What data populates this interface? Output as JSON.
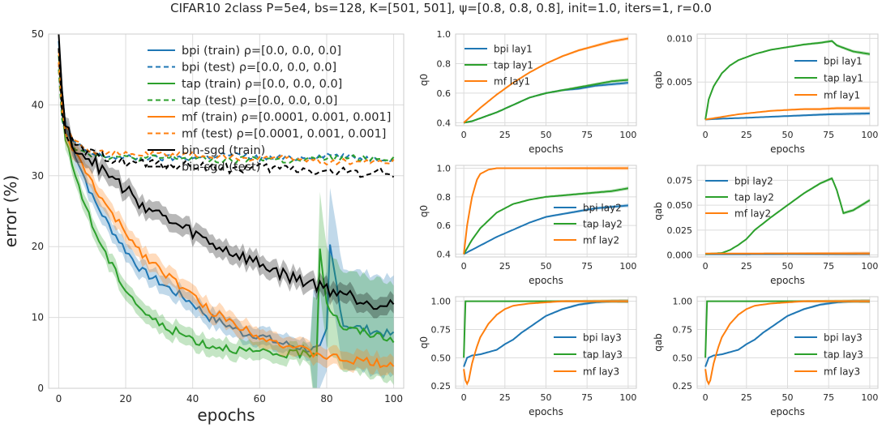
{
  "suptitle": "CIFAR10 2class P=5e4, bs=128, K=[501, 501], ψ=[0.8, 0.8, 0.8], init=1.0, iters=1, r=0.0",
  "colors": {
    "bpi": "#1f77b4",
    "tap": "#2ca02c",
    "mf": "#ff7f0e",
    "sgd": "#000000",
    "grid": "#dcdcdc",
    "frame": "#cccccc"
  },
  "chart_data": [
    {
      "id": "main",
      "type": "line",
      "xlabel": "epochs",
      "ylabel": "error (%)",
      "xlim": [
        -3,
        103
      ],
      "ylim": [
        0,
        50
      ],
      "xticks": [
        0,
        20,
        40,
        60,
        80,
        100
      ],
      "yticks": [
        0,
        10,
        20,
        30,
        40,
        50
      ],
      "legend_position": "upper center",
      "series": [
        {
          "name": "bpi (train) ρ=[0.0, 0.0, 0.0]",
          "color": "bpi",
          "dash": false,
          "band": true,
          "x": [
            0,
            1,
            2,
            5,
            10,
            15,
            20,
            25,
            30,
            35,
            40,
            45,
            50,
            55,
            60,
            65,
            70,
            75,
            78,
            80,
            81,
            85,
            90,
            95,
            100
          ],
          "y": [
            49,
            42,
            37,
            33,
            27,
            23,
            19.5,
            16.5,
            15,
            13.5,
            12,
            10,
            9,
            7.8,
            7.5,
            6.5,
            6,
            5.5,
            5.5,
            8,
            20,
            9,
            8.5,
            8,
            7.5
          ]
        },
        {
          "name": "bpi (test) ρ=[0.0, 0.0, 0.0]",
          "color": "bpi",
          "dash": true,
          "band": false,
          "x": [
            0,
            1,
            2,
            5,
            10,
            20,
            30,
            40,
            50,
            60,
            70,
            80,
            90,
            100
          ],
          "y": [
            46,
            38,
            36,
            34.5,
            33,
            32.5,
            32.5,
            32.5,
            33,
            32.5,
            32.5,
            33,
            32.5,
            32.5
          ]
        },
        {
          "name": "tap (train) ρ=[0.0, 0.0, 0.0]",
          "color": "tap",
          "dash": false,
          "band": true,
          "x": [
            0,
            1,
            2,
            5,
            10,
            15,
            20,
            25,
            30,
            35,
            40,
            45,
            50,
            55,
            60,
            65,
            70,
            75,
            77,
            78,
            80,
            85,
            90,
            95,
            100
          ],
          "y": [
            47,
            40,
            35,
            30,
            23,
            18,
            14,
            11,
            9,
            8,
            7,
            6,
            5.8,
            5.3,
            5,
            4.8,
            4.8,
            5,
            5,
            20,
            12,
            8.5,
            8,
            7.5,
            7
          ]
        },
        {
          "name": "tap (test) ρ=[0.0, 0.0, 0.0]",
          "color": "tap",
          "dash": true,
          "band": false,
          "x": [
            0,
            1,
            2,
            5,
            10,
            20,
            30,
            40,
            50,
            60,
            70,
            80,
            90,
            100
          ],
          "y": [
            45,
            38,
            36,
            34,
            33,
            32.5,
            32.5,
            32.5,
            32,
            32.5,
            32,
            32.5,
            32.5,
            32.5
          ]
        },
        {
          "name": "mf (train) ρ=[0.0001, 0.001, 0.001]",
          "color": "mf",
          "dash": false,
          "band": true,
          "x": [
            0,
            1,
            2,
            5,
            10,
            15,
            20,
            25,
            30,
            35,
            40,
            45,
            50,
            55,
            60,
            65,
            70,
            75,
            80,
            85,
            90,
            95,
            100
          ],
          "y": [
            48,
            40,
            36,
            33,
            29,
            25,
            22,
            19,
            17,
            15,
            13,
            11,
            9.8,
            8.5,
            7.5,
            6.5,
            5.8,
            5,
            4.5,
            4,
            3.8,
            3.6,
            3.4
          ]
        },
        {
          "name": "mf (test) ρ=[0.0001, 0.001, 0.001]",
          "color": "mf",
          "dash": true,
          "band": false,
          "x": [
            0,
            1,
            2,
            5,
            10,
            20,
            30,
            40,
            50,
            60,
            70,
            80,
            90,
            100
          ],
          "y": [
            46,
            39,
            37,
            35,
            33.5,
            33,
            33,
            33,
            32.5,
            32.5,
            32.5,
            32,
            32,
            32
          ]
        },
        {
          "name": "bin-sgd (train)",
          "color": "sgd",
          "dash": false,
          "band": true,
          "x": [
            0,
            1,
            2,
            5,
            10,
            15,
            20,
            25,
            30,
            35,
            40,
            45,
            50,
            55,
            60,
            65,
            70,
            75,
            80,
            85,
            90,
            95,
            100
          ],
          "y": [
            50,
            42,
            37,
            34,
            32,
            30,
            28,
            26,
            24.5,
            23,
            22,
            20.5,
            19.5,
            18.5,
            17.5,
            16.5,
            15.5,
            15,
            14,
            13.5,
            12.5,
            12,
            12
          ]
        },
        {
          "name": "bin-sgd (test)",
          "color": "sgd",
          "dash": true,
          "band": false,
          "x": [
            0,
            1,
            2,
            5,
            10,
            20,
            30,
            40,
            50,
            60,
            70,
            80,
            90,
            100
          ],
          "y": [
            48,
            39,
            36,
            34,
            33,
            32,
            31.5,
            31.5,
            31,
            31,
            31,
            30.5,
            30.5,
            30.5
          ]
        }
      ]
    },
    {
      "id": "r1c1",
      "type": "line",
      "xlabel": "epochs",
      "ylabel": "q0",
      "xlim": [
        -5,
        105
      ],
      "ylim": [
        0.38,
        1.0
      ],
      "xticks": [
        0,
        25,
        50,
        75,
        100
      ],
      "yticks": [
        0.4,
        0.6,
        0.8,
        1.0
      ],
      "yticklabels": [
        "0.4",
        "0.6",
        "0.8",
        "1.0"
      ],
      "legend_position": "upper left",
      "series": [
        {
          "name": "bpi lay1",
          "color": "bpi",
          "x": [
            0,
            5,
            10,
            20,
            30,
            40,
            50,
            60,
            70,
            80,
            90,
            100
          ],
          "y": [
            0.4,
            0.41,
            0.43,
            0.47,
            0.52,
            0.57,
            0.6,
            0.62,
            0.63,
            0.65,
            0.66,
            0.67
          ]
        },
        {
          "name": "tap lay1",
          "color": "tap",
          "x": [
            0,
            5,
            10,
            20,
            30,
            40,
            50,
            60,
            70,
            80,
            90,
            100
          ],
          "y": [
            0.4,
            0.41,
            0.43,
            0.47,
            0.52,
            0.57,
            0.6,
            0.62,
            0.64,
            0.66,
            0.68,
            0.69
          ]
        },
        {
          "name": "mf lay1",
          "color": "mf",
          "x": [
            0,
            5,
            10,
            20,
            30,
            40,
            50,
            60,
            70,
            80,
            90,
            100
          ],
          "y": [
            0.4,
            0.45,
            0.5,
            0.59,
            0.67,
            0.74,
            0.8,
            0.85,
            0.89,
            0.92,
            0.95,
            0.97
          ]
        }
      ]
    },
    {
      "id": "r1c2",
      "type": "line",
      "xlabel": "epochs",
      "ylabel": "qab",
      "xlim": [
        -5,
        105
      ],
      "ylim": [
        0.0,
        0.0105
      ],
      "xticks": [
        0,
        25,
        50,
        75,
        100
      ],
      "yticks": [
        0.005,
        0.01
      ],
      "yticklabels": [
        "0.005",
        "0.010"
      ],
      "legend_position": "upper right",
      "series": [
        {
          "name": "bpi lay1",
          "color": "bpi",
          "x": [
            0,
            10,
            25,
            50,
            75,
            100
          ],
          "y": [
            0.0007,
            0.0008,
            0.0009,
            0.0011,
            0.0013,
            0.0014
          ]
        },
        {
          "name": "tap lay1",
          "color": "tap",
          "x": [
            0,
            2,
            5,
            10,
            15,
            20,
            30,
            40,
            50,
            60,
            70,
            77,
            80,
            90,
            100
          ],
          "y": [
            0.0007,
            0.003,
            0.0045,
            0.006,
            0.0069,
            0.0075,
            0.0082,
            0.0087,
            0.009,
            0.0093,
            0.0095,
            0.0097,
            0.0092,
            0.0085,
            0.0082
          ]
        },
        {
          "name": "mf lay1",
          "color": "mf",
          "x": [
            0,
            10,
            20,
            30,
            40,
            50,
            60,
            70,
            80,
            90,
            100
          ],
          "y": [
            0.0007,
            0.001,
            0.0013,
            0.0015,
            0.0017,
            0.0018,
            0.0019,
            0.0019,
            0.002,
            0.002,
            0.002
          ]
        }
      ]
    },
    {
      "id": "r2c1",
      "type": "line",
      "xlabel": "epochs",
      "ylabel": "q0",
      "xlim": [
        -5,
        105
      ],
      "ylim": [
        0.38,
        1.02
      ],
      "xticks": [
        0,
        25,
        50,
        75,
        100
      ],
      "yticks": [
        0.4,
        0.6,
        0.8,
        1.0
      ],
      "yticklabels": [
        "0.4",
        "0.6",
        "0.8",
        "1.0"
      ],
      "legend_position": "lower right",
      "series": [
        {
          "name": "bpi lay2",
          "color": "bpi",
          "x": [
            0,
            10,
            20,
            30,
            40,
            50,
            60,
            70,
            80,
            90,
            100
          ],
          "y": [
            0.4,
            0.46,
            0.52,
            0.57,
            0.62,
            0.66,
            0.68,
            0.7,
            0.72,
            0.73,
            0.74
          ]
        },
        {
          "name": "tap lay2",
          "color": "tap",
          "x": [
            0,
            5,
            10,
            20,
            30,
            40,
            50,
            60,
            70,
            80,
            90,
            100
          ],
          "y": [
            0.4,
            0.5,
            0.58,
            0.69,
            0.75,
            0.78,
            0.8,
            0.81,
            0.82,
            0.83,
            0.84,
            0.86
          ]
        },
        {
          "name": "mf lay2",
          "color": "mf",
          "x": [
            0,
            2,
            5,
            8,
            10,
            15,
            20,
            30,
            50,
            75,
            100
          ],
          "y": [
            0.4,
            0.6,
            0.8,
            0.92,
            0.96,
            0.99,
            1.0,
            1.0,
            1.0,
            1.0,
            1.0
          ]
        }
      ]
    },
    {
      "id": "r2c2",
      "type": "line",
      "xlabel": "epochs",
      "ylabel": "qab",
      "xlim": [
        -5,
        105
      ],
      "ylim": [
        -0.002,
        0.09
      ],
      "xticks": [
        0,
        25,
        50,
        75,
        100
      ],
      "yticks": [
        0.0,
        0.025,
        0.05,
        0.075
      ],
      "yticklabels": [
        "0.000",
        "0.025",
        "0.050",
        "0.075"
      ],
      "legend_position": "upper left",
      "series": [
        {
          "name": "bpi lay2",
          "color": "bpi",
          "x": [
            0,
            25,
            50,
            75,
            100
          ],
          "y": [
            0.0008,
            0.0008,
            0.0009,
            0.0009,
            0.001
          ]
        },
        {
          "name": "tap lay2",
          "color": "tap",
          "x": [
            0,
            10,
            15,
            20,
            25,
            30,
            40,
            50,
            60,
            70,
            77,
            80,
            84,
            90,
            100
          ],
          "y": [
            0.001,
            0.002,
            0.005,
            0.01,
            0.016,
            0.025,
            0.038,
            0.05,
            0.062,
            0.072,
            0.077,
            0.065,
            0.042,
            0.045,
            0.055
          ]
        },
        {
          "name": "mf lay2",
          "color": "mf",
          "x": [
            0,
            25,
            50,
            75,
            100
          ],
          "y": [
            0.0015,
            0.0015,
            0.0016,
            0.0016,
            0.0016
          ]
        }
      ]
    },
    {
      "id": "r3c1",
      "type": "line",
      "xlabel": "epochs",
      "ylabel": "q0",
      "xlim": [
        -5,
        105
      ],
      "ylim": [
        0.23,
        1.04
      ],
      "xticks": [
        0,
        25,
        50,
        75,
        100
      ],
      "yticks": [
        0.25,
        0.5,
        0.75,
        1.0
      ],
      "yticklabels": [
        "0.25",
        "0.50",
        "0.75",
        "1.00"
      ],
      "legend_position": "lower right",
      "series": [
        {
          "name": "bpi lay3",
          "color": "bpi",
          "x": [
            0,
            2,
            5,
            10,
            15,
            20,
            25,
            30,
            35,
            40,
            45,
            50,
            55,
            60,
            65,
            70,
            75,
            80,
            90,
            100
          ],
          "y": [
            0.42,
            0.5,
            0.52,
            0.53,
            0.55,
            0.57,
            0.62,
            0.66,
            0.72,
            0.77,
            0.82,
            0.87,
            0.9,
            0.93,
            0.95,
            0.97,
            0.98,
            0.99,
            1.0,
            1.0
          ]
        },
        {
          "name": "tap lay3",
          "color": "tap",
          "x": [
            0,
            1,
            2,
            5,
            10,
            50,
            100
          ],
          "y": [
            0.5,
            1.0,
            1.0,
            1.0,
            1.0,
            1.0,
            1.0
          ]
        },
        {
          "name": "mf lay3",
          "color": "mf",
          "x": [
            0,
            1,
            2,
            3,
            5,
            8,
            10,
            15,
            20,
            25,
            30,
            40,
            50,
            60,
            100
          ],
          "y": [
            0.4,
            0.3,
            0.27,
            0.3,
            0.45,
            0.6,
            0.68,
            0.8,
            0.88,
            0.93,
            0.96,
            0.98,
            0.99,
            1.0,
            1.0
          ]
        }
      ]
    },
    {
      "id": "r3c2",
      "type": "line",
      "xlabel": "epochs",
      "ylabel": "qab",
      "xlim": [
        -5,
        105
      ],
      "ylim": [
        0.23,
        1.04
      ],
      "xticks": [
        0,
        25,
        50,
        75,
        100
      ],
      "yticks": [
        0.25,
        0.5,
        0.75,
        1.0
      ],
      "yticklabels": [
        "0.25",
        "0.50",
        "0.75",
        "1.00"
      ],
      "legend_position": "lower right",
      "series": [
        {
          "name": "bpi lay3",
          "color": "bpi",
          "x": [
            0,
            2,
            5,
            10,
            15,
            20,
            25,
            30,
            35,
            40,
            45,
            50,
            55,
            60,
            65,
            70,
            75,
            80,
            90,
            100
          ],
          "y": [
            0.42,
            0.5,
            0.52,
            0.53,
            0.55,
            0.57,
            0.62,
            0.66,
            0.72,
            0.77,
            0.82,
            0.87,
            0.9,
            0.93,
            0.95,
            0.97,
            0.98,
            0.99,
            1.0,
            1.0
          ]
        },
        {
          "name": "tap lay3",
          "color": "tap",
          "x": [
            0,
            1,
            2,
            5,
            10,
            50,
            100
          ],
          "y": [
            0.5,
            1.0,
            1.0,
            1.0,
            1.0,
            1.0,
            1.0
          ]
        },
        {
          "name": "mf lay3",
          "color": "mf",
          "x": [
            0,
            1,
            2,
            3,
            5,
            8,
            10,
            15,
            20,
            25,
            30,
            40,
            50,
            60,
            100
          ],
          "y": [
            0.4,
            0.3,
            0.27,
            0.3,
            0.45,
            0.6,
            0.68,
            0.8,
            0.88,
            0.93,
            0.96,
            0.98,
            0.99,
            1.0,
            1.0
          ]
        }
      ]
    }
  ]
}
